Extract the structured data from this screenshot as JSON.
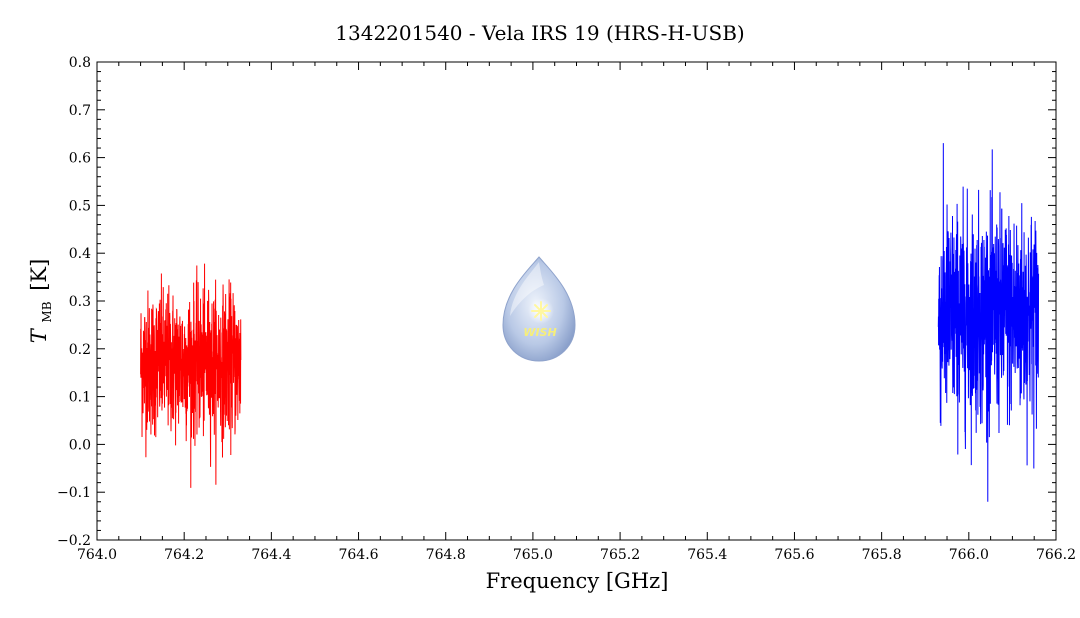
{
  "chart_data": {
    "type": "line",
    "title": "1342201540 - Vela IRS 19 (HRS-H-USB)",
    "xlabel": "Frequency [GHz]",
    "ylabel_main": "T",
    "ylabel_sub": "MB",
    "ylabel_unit": "[K]",
    "xlim": [
      764.0,
      766.2
    ],
    "ylim": [
      -0.2,
      0.8
    ],
    "x_ticks": [
      764.0,
      764.2,
      764.4,
      764.6,
      764.8,
      765.0,
      765.2,
      765.4,
      765.6,
      765.8,
      766.0,
      766.2
    ],
    "x_tick_labels": [
      "764.0",
      "764.2",
      "764.4",
      "764.6",
      "764.8",
      "765.0",
      "765.2",
      "765.4",
      "765.6",
      "765.8",
      "766.0",
      "766.2"
    ],
    "y_ticks": [
      -0.2,
      -0.1,
      0.0,
      0.1,
      0.2,
      0.3,
      0.4,
      0.5,
      0.6,
      0.7,
      0.8
    ],
    "y_tick_labels": [
      "−0.2",
      "−0.1",
      "0.0",
      "0.1",
      "0.2",
      "0.3",
      "0.4",
      "0.5",
      "0.6",
      "0.7",
      "0.8"
    ],
    "grid": false,
    "series": [
      {
        "color": "#ff0000",
        "x_start": 764.1,
        "x_end": 764.33,
        "mean": 0.17,
        "noise_sigma": 0.075,
        "y_min": -0.12,
        "y_max": 0.45
      },
      {
        "color": "#0000ff",
        "x_start": 765.93,
        "x_end": 766.16,
        "mean": 0.27,
        "noise_sigma": 0.11,
        "y_min": -0.12,
        "y_max": 0.68
      }
    ]
  },
  "logo": {
    "text": "WISH",
    "icon": "water-drop-star-icon"
  }
}
